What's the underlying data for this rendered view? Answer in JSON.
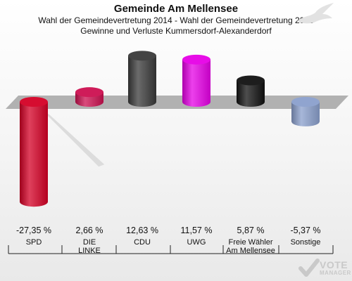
{
  "header": {
    "title": "Gemeinde Am Mellensee",
    "subtitle1": "Wahl der Gemeindevertretung 2014 - Wahl der Gemeindevertretung 2008",
    "subtitle2": "Gewinne und Verluste Kummersdorf-Alexanderdorf"
  },
  "logo": {
    "vote": "VOTE",
    "manager": "MANAGER",
    "icon": "checkmark-icon"
  },
  "decoration": {
    "icon": "bird-watermark-icon"
  },
  "chart_data": {
    "type": "bar",
    "title": "Gemeinde Am Mellensee",
    "categories": [
      "SPD",
      "DIE LINKE",
      "CDU",
      "UWG",
      "Freie Wähler Am Mellensee",
      "Sonstige"
    ],
    "category_lines": [
      [
        "SPD"
      ],
      [
        "DIE",
        "LINKE"
      ],
      [
        "CDU"
      ],
      [
        "UWG"
      ],
      [
        "Freie Wähler",
        "Am Mellensee"
      ],
      [
        "Sonstige"
      ]
    ],
    "values": [
      -27.35,
      2.66,
      12.63,
      11.57,
      5.87,
      -5.37
    ],
    "value_labels": [
      "-27,35 %",
      "2,66 %",
      "12,63 %",
      "11,57 %",
      "5,87 %",
      "-5,37 %"
    ],
    "colors": [
      "#d40025",
      "#cc1050",
      "#3a3a3a",
      "#e600e6",
      "#111111",
      "#8a9fcc"
    ],
    "unit": "%",
    "grid": false,
    "legend": "none"
  }
}
